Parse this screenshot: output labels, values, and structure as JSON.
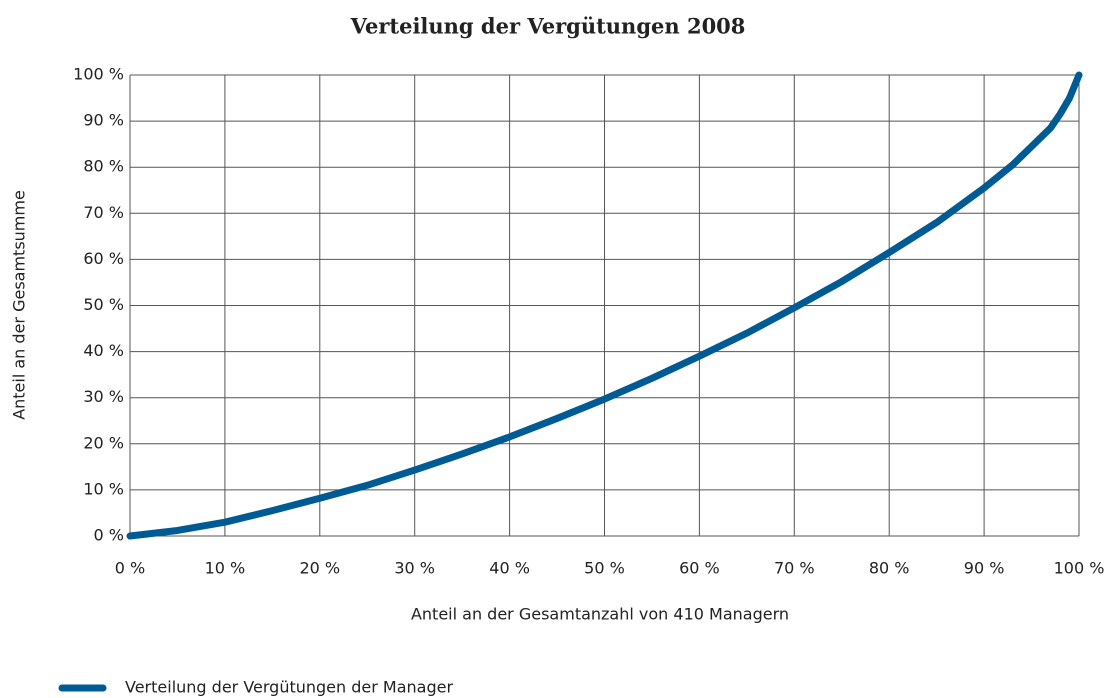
{
  "chart_data": {
    "type": "line",
    "title": "Verteilung der Vergütungen 2008",
    "x_label": "Anteil an der Gesamtanzahl von 410 Managern",
    "y_label": "Anteil an der Gesamtsumme",
    "x": [
      0,
      5,
      10,
      15,
      20,
      25,
      30,
      35,
      40,
      45,
      50,
      55,
      60,
      65,
      70,
      75,
      80,
      85,
      90,
      93,
      95,
      97,
      98,
      99,
      100
    ],
    "series": [
      {
        "name": "Verteilung der Vergütungen der Manager",
        "color": "#005b94",
        "values": [
          0,
          1.2,
          3,
          5.5,
          8.2,
          11,
          14.3,
          17.8,
          21.5,
          25.5,
          29.7,
          34.2,
          39,
          44,
          49.5,
          55.2,
          61.5,
          68,
          75.5,
          80.5,
          84.5,
          88.5,
          91.5,
          95,
          100
        ]
      }
    ],
    "xlim": [
      0,
      100
    ],
    "xticks": [
      {
        "value": 0,
        "label": "0 %"
      },
      {
        "value": 10,
        "label": "10 %"
      },
      {
        "value": 20,
        "label": "20 %"
      },
      {
        "value": 30,
        "label": "30 %"
      },
      {
        "value": 40,
        "label": "40 %"
      },
      {
        "value": 50,
        "label": "50 %"
      },
      {
        "value": 60,
        "label": "60 %"
      },
      {
        "value": 70,
        "label": "70 %"
      },
      {
        "value": 80,
        "label": "80 %"
      },
      {
        "value": 90,
        "label": "90 %"
      },
      {
        "value": 100,
        "label": "100 %"
      }
    ],
    "ylim": [
      0,
      100
    ],
    "yticks": [
      {
        "value": 0,
        "label": "0 %"
      },
      {
        "value": 10,
        "label": "10 %"
      },
      {
        "value": 20,
        "label": "20 %"
      },
      {
        "value": 30,
        "label": "30 %"
      },
      {
        "value": 40,
        "label": "40 %"
      },
      {
        "value": 50,
        "label": "50 %"
      },
      {
        "value": 60,
        "label": "60 %"
      },
      {
        "value": 70,
        "label": "70 %"
      },
      {
        "value": 80,
        "label": "80 %"
      },
      {
        "value": 90,
        "label": "90 %"
      },
      {
        "value": 100,
        "label": "100 %"
      }
    ],
    "grid": true
  }
}
